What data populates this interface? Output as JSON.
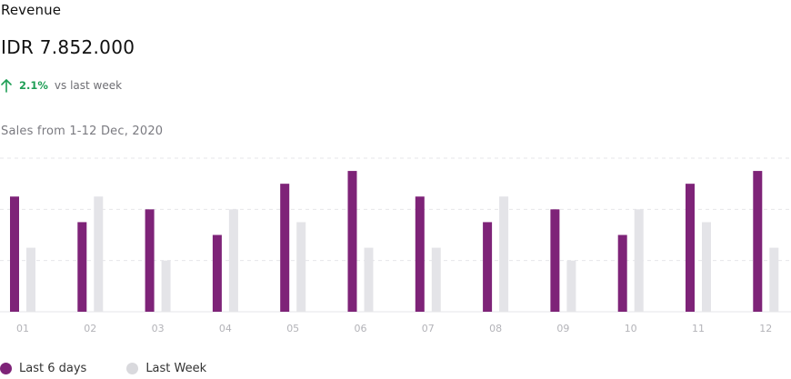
{
  "header": {
    "title": "Revenue",
    "amount": "IDR 7.852.000",
    "delta_pct": "2.1%",
    "delta_text": "vs last week",
    "delta_icon": "arrow-up-icon",
    "subtitle": "Sales from 1-12 Dec, 2020"
  },
  "colors": {
    "current": "#7e2378",
    "previous": "#e4e4e8",
    "up": "#1e9e55",
    "grid": "#e6e6ea"
  },
  "chart_data": {
    "type": "bar",
    "title": "",
    "xlabel": "",
    "ylabel": "",
    "categories": [
      "01",
      "02",
      "03",
      "04",
      "05",
      "06",
      "07",
      "08",
      "09",
      "10",
      "11",
      "12"
    ],
    "ylim": [
      0,
      12
    ],
    "grid": true,
    "legend": "bottom-left",
    "series": [
      {
        "name": "Last 6 days",
        "color": "#7e2378",
        "values": [
          9,
          7,
          8,
          6,
          10,
          11,
          9,
          7,
          8,
          6,
          10,
          11
        ]
      },
      {
        "name": "Last Week",
        "color": "#e4e4e8",
        "values": [
          5,
          9,
          4,
          8,
          7,
          5,
          5,
          9,
          4,
          8,
          7,
          5
        ]
      }
    ]
  }
}
